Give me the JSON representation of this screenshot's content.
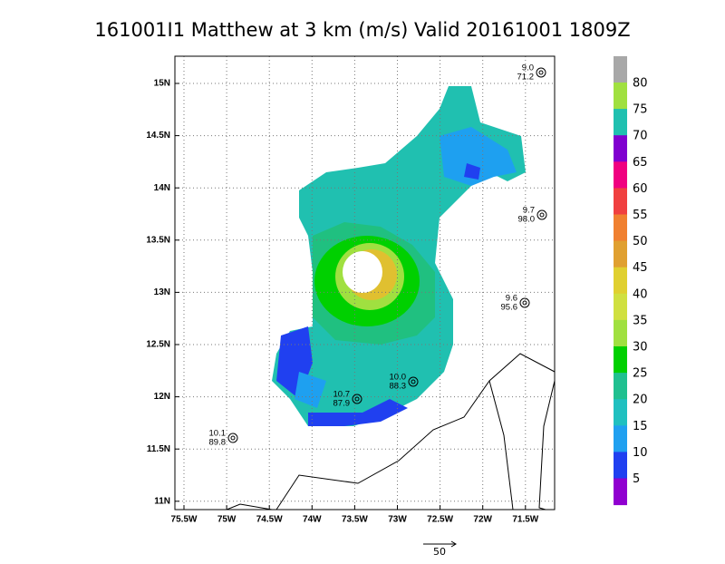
{
  "header": {
    "title": "161001I1 Matthew at 3 km (m/s) Valid 20161001  1809Z"
  },
  "map": {
    "lon_labels": [
      "75.5W",
      "75W",
      "74.5W",
      "74W",
      "73.5W",
      "73W",
      "72.5W",
      "72W",
      "71.5W"
    ],
    "lat_labels": [
      "15N",
      "14.5N",
      "14N",
      "13.5N",
      "13N",
      "12.5N",
      "12N",
      "11.5N",
      "11N"
    ]
  },
  "colorbar": {
    "labels": [
      "80",
      "75",
      "70",
      "65",
      "60",
      "55",
      "50",
      "45",
      "40",
      "35",
      "30",
      "25",
      "20",
      "15",
      "10",
      "5"
    ]
  },
  "stations": [
    {
      "top": "9.0",
      "bottom": "71.2"
    },
    {
      "top": "9.7",
      "bottom": "98.0"
    },
    {
      "top": "9.6",
      "bottom": "95.6"
    },
    {
      "top": "10.0",
      "bottom": "88.3"
    },
    {
      "top": "10.7",
      "bottom": "87.9"
    },
    {
      "top": "10.1",
      "bottom": "89.8"
    }
  ],
  "scale": {
    "label": "50"
  }
}
